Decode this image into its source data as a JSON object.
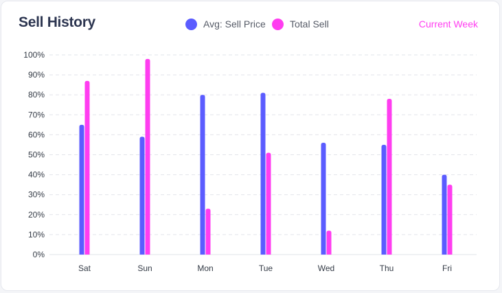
{
  "header": {
    "title": "Sell History",
    "period_label": "Current Week"
  },
  "colors": {
    "avg_sell_price": "#5b5cff",
    "total_sell": "#ff3df0",
    "grid": "#e2e4ea"
  },
  "chart_data": {
    "type": "bar",
    "title": "Sell History",
    "categories": [
      "Sat",
      "Sun",
      "Mon",
      "Tue",
      "Wed",
      "Thu",
      "Fri"
    ],
    "series": [
      {
        "name": "Avg: Sell Price",
        "values": [
          65,
          59,
          80,
          81,
          56,
          55,
          40
        ]
      },
      {
        "name": "Total Sell",
        "values": [
          87,
          98,
          23,
          51,
          12,
          78,
          35
        ]
      }
    ],
    "y_ticks": [
      "0%",
      "10%",
      "20%",
      "30%",
      "40%",
      "50%",
      "60%",
      "70%",
      "80%",
      "90%",
      "100%"
    ],
    "ylim": [
      0,
      100
    ],
    "xlabel": "",
    "ylabel": "",
    "grid": true,
    "legend_position": "top-center"
  }
}
